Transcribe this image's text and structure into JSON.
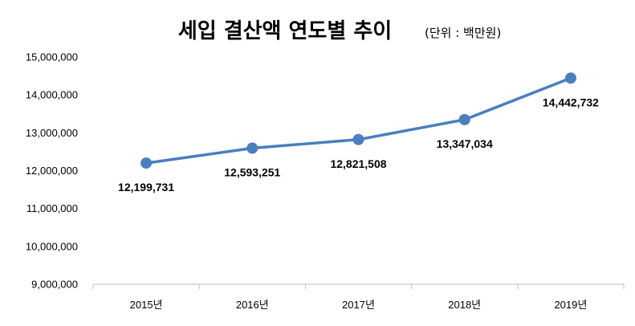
{
  "chart_data": {
    "type": "line",
    "title": "세입 결산액 연도별 추이",
    "unit_note": "(단위 : 백만원)",
    "categories": [
      "2015년",
      "2016년",
      "2017년",
      "2018년",
      "2019년"
    ],
    "series": [
      {
        "values": [
          12199731,
          12593251,
          12821508,
          13347034,
          14442732
        ],
        "labels": [
          "12,199,731",
          "12,593,251",
          "12,821,508",
          "13,347,034",
          "14,442,732"
        ],
        "label_position": [
          "below",
          "below",
          "below",
          "below",
          "below"
        ],
        "color": "#4a7ebf"
      }
    ],
    "ylim": [
      9000000,
      15000000
    ],
    "y_ticks": [
      {
        "value": 15000000,
        "label": "15,000,000"
      },
      {
        "value": 14000000,
        "label": "14,000,000"
      },
      {
        "value": 13000000,
        "label": "13,000,000"
      },
      {
        "value": 12000000,
        "label": "12,000,000"
      },
      {
        "value": 11000000,
        "label": "11,000,000"
      },
      {
        "value": 10000000,
        "label": "10,000,000"
      },
      {
        "value": 9000000,
        "label": "9,000,000"
      }
    ],
    "grid": false,
    "legend": "none",
    "xlabel": "",
    "ylabel": ""
  }
}
